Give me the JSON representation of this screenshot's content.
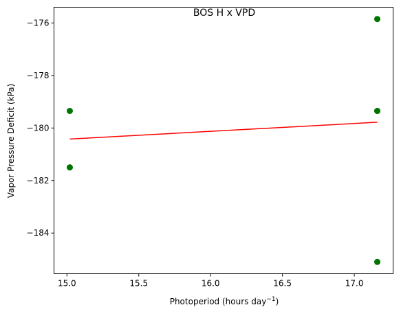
{
  "chart_data": {
    "type": "scatter",
    "title": "BOS H x VPD",
    "xlabel": "Photoperiod (hours day",
    "xlabel_superscript": "−1",
    "xlabel_suffix": ")",
    "ylabel": "Vapor Pressure Deficit (kPa)",
    "xlim": [
      14.91,
      17.27
    ],
    "ylim": [
      -185.55,
      -175.4
    ],
    "x_ticks": [
      15.0,
      15.5,
      16.0,
      16.5,
      17.0
    ],
    "x_tick_labels": [
      "15.0",
      "15.5",
      "16.0",
      "16.5",
      "17.0"
    ],
    "y_ticks": [
      -184,
      -182,
      -180,
      -178,
      -176
    ],
    "y_tick_labels": [
      "−184",
      "−182",
      "−180",
      "−178",
      "−176"
    ],
    "grid": false,
    "series": [
      {
        "kind": "points",
        "color": "#007400",
        "points": [
          {
            "x": 15.02,
            "y": -179.35
          },
          {
            "x": 15.02,
            "y": -181.5
          },
          {
            "x": 17.16,
            "y": -175.85
          },
          {
            "x": 17.16,
            "y": -179.35
          },
          {
            "x": 17.16,
            "y": -179.35
          },
          {
            "x": 17.16,
            "y": -185.1
          }
        ]
      },
      {
        "kind": "fit-line",
        "color": "#ff0000",
        "points": [
          {
            "x": 15.02,
            "y": -180.42
          },
          {
            "x": 17.16,
            "y": -179.78
          }
        ]
      }
    ]
  }
}
